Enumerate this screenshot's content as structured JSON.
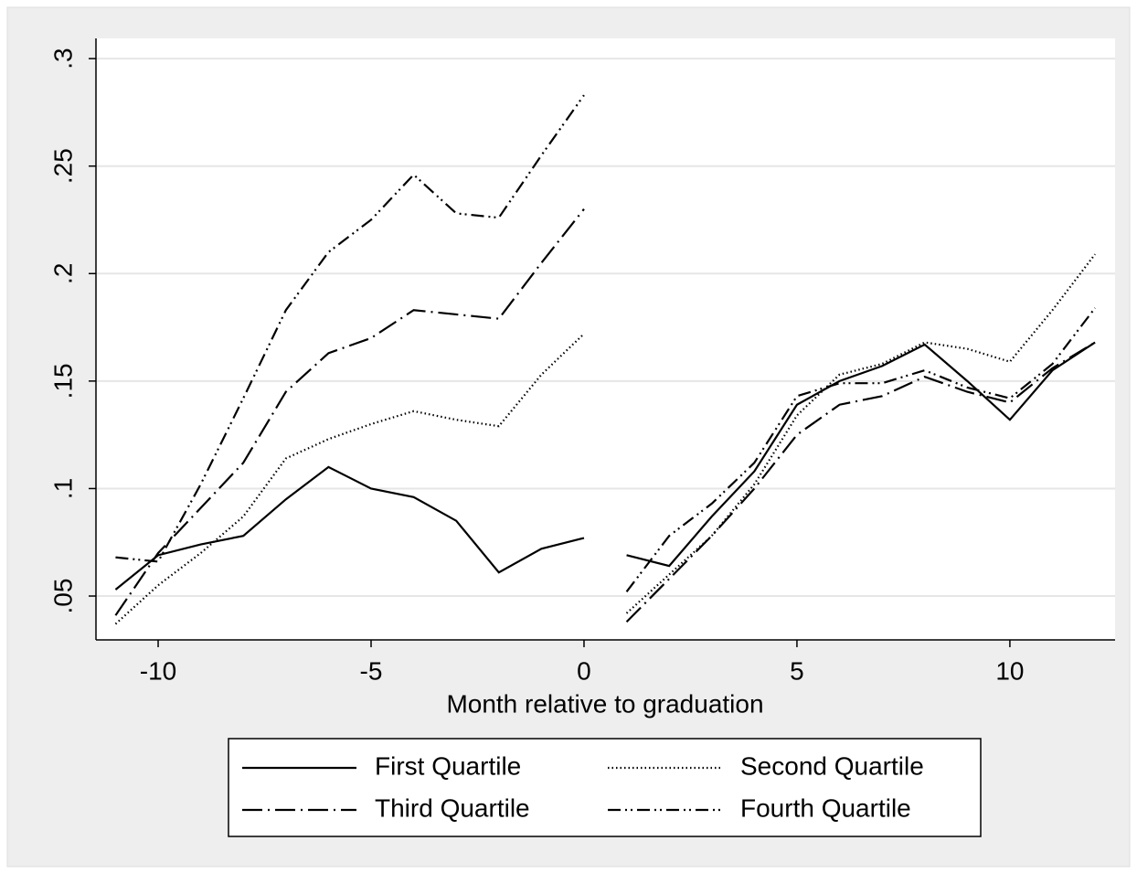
{
  "chart_data": {
    "type": "line",
    "x_label": "Month relative to graduation",
    "x": [
      -11,
      -10,
      -9,
      -8,
      -7,
      -6,
      -5,
      -4,
      -3,
      -2,
      -1,
      0,
      null,
      1,
      2,
      3,
      4,
      5,
      6,
      7,
      8,
      9,
      10,
      11,
      12
    ],
    "series": [
      {
        "name": "First Quartile",
        "color": "#000000",
        "dash": "none",
        "values": [
          0.053,
          0.069,
          0.074,
          0.078,
          0.095,
          0.11,
          0.1,
          0.096,
          0.085,
          0.061,
          0.072,
          0.077,
          null,
          0.069,
          0.064,
          0.087,
          0.108,
          0.139,
          0.15,
          0.157,
          0.167,
          0.15,
          0.132,
          0.155,
          0.168
        ]
      },
      {
        "name": "Second Quartile",
        "color": "#000000",
        "dash": "dotted",
        "values": [
          0.037,
          0.055,
          0.07,
          0.087,
          0.114,
          0.123,
          0.13,
          0.136,
          0.132,
          0.129,
          0.153,
          0.172,
          null,
          0.042,
          0.06,
          0.078,
          0.102,
          0.134,
          0.153,
          0.158,
          0.168,
          0.165,
          0.159,
          0.183,
          0.209
        ]
      },
      {
        "name": "Third Quartile",
        "color": "#000000",
        "dash": "dash-dot",
        "values": [
          0.041,
          0.07,
          0.091,
          0.112,
          0.145,
          0.163,
          0.17,
          0.183,
          0.181,
          0.179,
          0.205,
          0.23,
          null,
          0.038,
          0.058,
          0.078,
          0.1,
          0.125,
          0.139,
          0.143,
          0.152,
          0.145,
          0.14,
          0.156,
          0.168
        ]
      },
      {
        "name": "Fourth Quartile",
        "color": "#000000",
        "dash": "dash-dot-dot",
        "values": [
          0.068,
          0.066,
          0.102,
          0.142,
          0.183,
          0.21,
          0.225,
          0.246,
          0.228,
          0.226,
          0.255,
          0.283,
          null,
          0.052,
          0.078,
          0.093,
          0.112,
          0.143,
          0.149,
          0.149,
          0.155,
          0.147,
          0.142,
          0.158,
          0.184
        ]
      }
    ],
    "xlim": [
      -11.46,
      12.47
    ],
    "xticks": [
      -10,
      -5,
      0,
      5,
      10
    ],
    "ylim": [
      0.0296,
      0.3094
    ],
    "yticks": [
      {
        "value": 0.05,
        "label": ".05"
      },
      {
        "value": 0.1,
        "label": ".1"
      },
      {
        "value": 0.15,
        "label": ".15"
      },
      {
        "value": 0.2,
        "label": ".2"
      },
      {
        "value": 0.25,
        "label": ".25"
      },
      {
        "value": 0.3,
        "label": ".3"
      }
    ],
    "grid": true,
    "legend": "bottom"
  }
}
